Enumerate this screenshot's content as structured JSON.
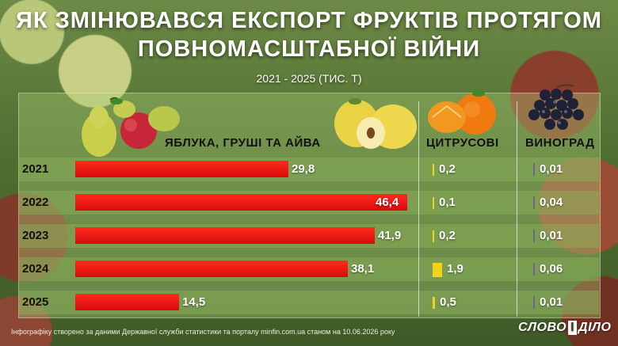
{
  "title_line1": "ЯК ЗМІНЮВАВСЯ ЕКСПОРТ ФРУКТІВ ПРОТЯГОМ",
  "title_line2": "ПОВНОМАСШТАБНОЇ ВІЙНИ",
  "subtitle": "2021 - 2025 (ТИС. Т)",
  "columns": {
    "apples": "ЯБЛУКА, ГРУШІ ТА АЙВА",
    "citrus": "ЦИТРУСОВІ",
    "grapes": "ВИНОГРАД"
  },
  "chart_data": {
    "type": "bar",
    "orientation": "horizontal",
    "categories": [
      "2021",
      "2022",
      "2023",
      "2024",
      "2025"
    ],
    "series": [
      {
        "name": "ЯБЛУКА, ГРУШІ ТА АЙВА",
        "values": [
          29.8,
          46.4,
          41.9,
          38.1,
          14.5
        ],
        "labels": [
          "29,8",
          "46,4",
          "41,9",
          "38,1",
          "14,5"
        ],
        "color": "#e61414"
      },
      {
        "name": "ЦИТРУСОВІ",
        "values": [
          0.2,
          0.1,
          0.2,
          1.9,
          0.5
        ],
        "labels": [
          "0,2",
          "0,1",
          "0,2",
          "1,9",
          "0,5"
        ],
        "color": "#f2d21a"
      },
      {
        "name": "ВИНОГРАД",
        "values": [
          0.01,
          0.04,
          0.01,
          0.06,
          0.01
        ],
        "labels": [
          "0,01",
          "0,04",
          "0,01",
          "0,06",
          "0,01"
        ],
        "color": "#6a6596"
      }
    ]
  },
  "footer": "Інфографіку створено за даними Державної служби статистики та порталу minfin.com.ua станом на 10.06.2026 року",
  "logo": {
    "left": "СЛОВО",
    "mid": "І",
    "right": "ДІЛО"
  },
  "colors": {
    "bar": "#e61414",
    "citrus": "#f2d21a",
    "grapes": "#6a6596"
  }
}
